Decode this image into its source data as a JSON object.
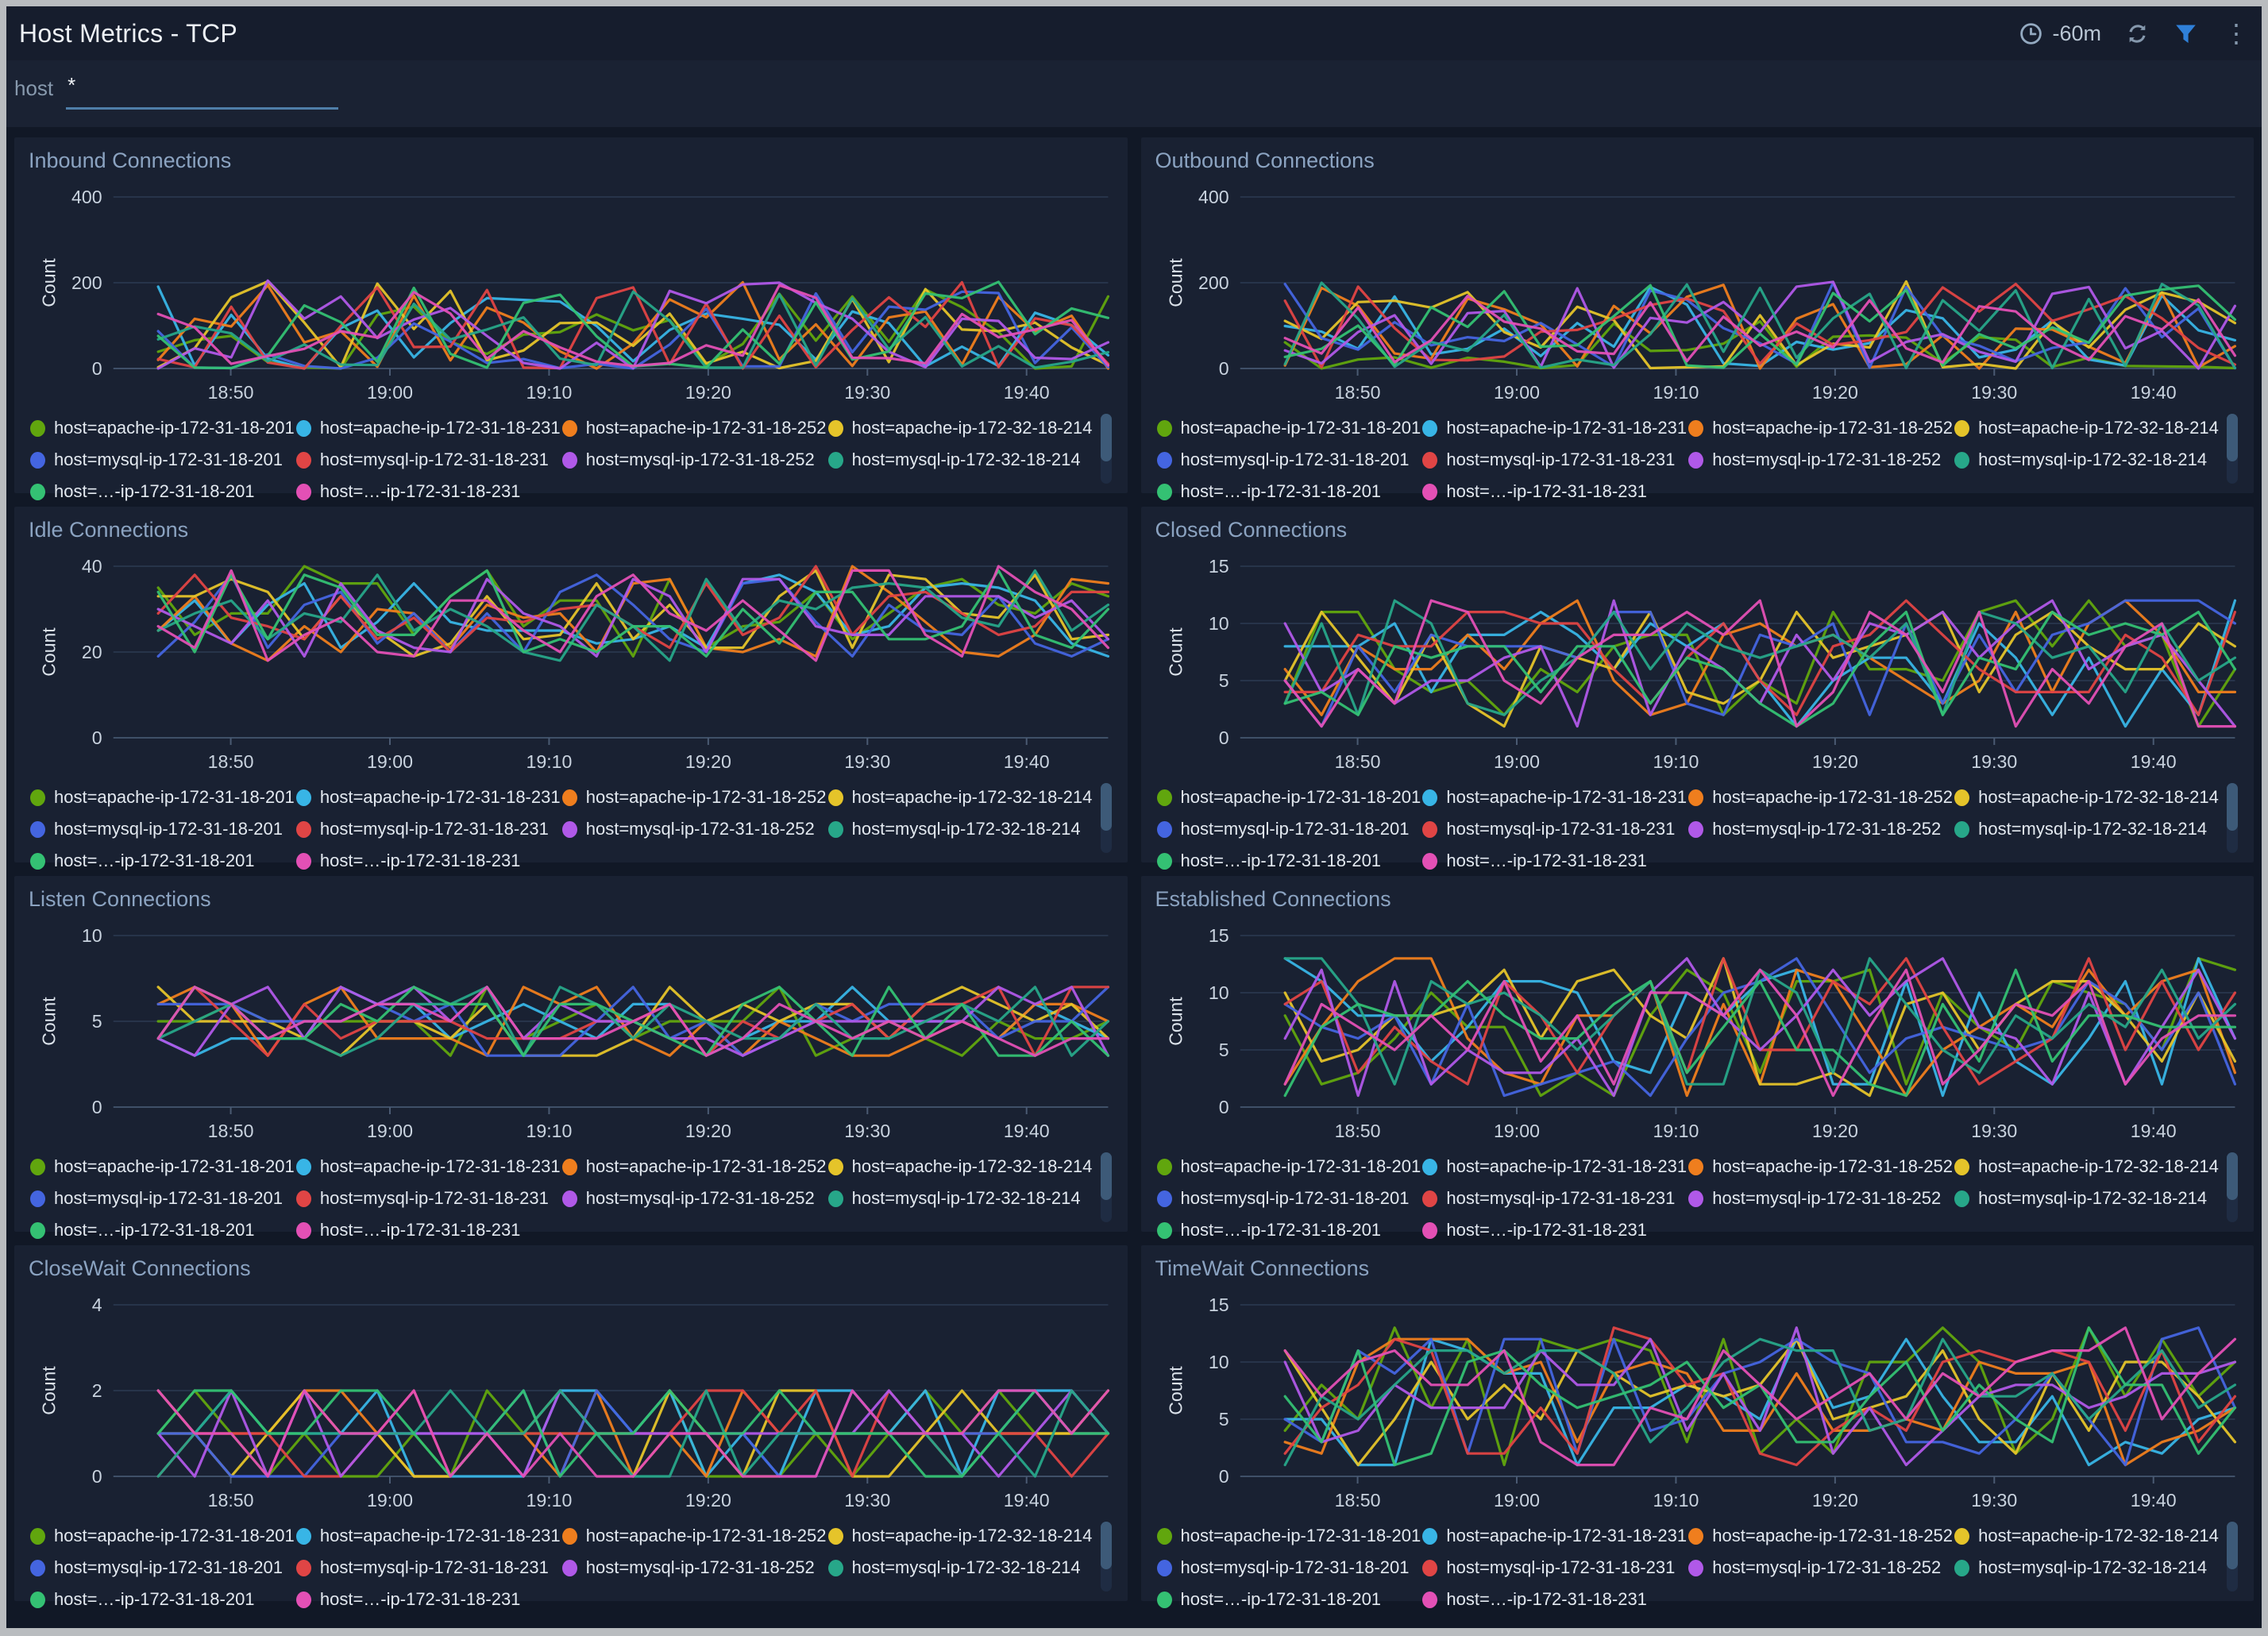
{
  "window": {
    "frame_color": "#b9bcbf",
    "page_bg": "#111826",
    "panel_bg": "#192132"
  },
  "header": {
    "title": "Host Metrics - TCP",
    "time_range": "-60m",
    "icons": [
      "clock-icon",
      "refresh-icon",
      "filter-icon",
      "kebab-menu-icon"
    ],
    "filter_icon_color": "#2f80d9",
    "icon_color": "#93a9c0"
  },
  "filter": {
    "label": "host",
    "value": "*"
  },
  "x_ticks": [
    "18:50",
    "19:00",
    "19:10",
    "19:20",
    "19:30",
    "19:40"
  ],
  "series": [
    {
      "name": "host=apache-ip-172-31-18-201",
      "color": "#61a60e"
    },
    {
      "name": "host=apache-ip-172-31-18-231",
      "color": "#38b5e6"
    },
    {
      "name": "host=apache-ip-172-31-18-252",
      "color": "#ef7e1e"
    },
    {
      "name": "host=apache-ip-172-32-18-214",
      "color": "#e5c42a"
    },
    {
      "name": "host=mysql-ip-172-31-18-201",
      "color": "#4465e0"
    },
    {
      "name": "host=mysql-ip-172-31-18-231",
      "color": "#e04545"
    },
    {
      "name": "host=mysql-ip-172-31-18-252",
      "color": "#b059e8"
    },
    {
      "name": "host=mysql-ip-172-32-18-214",
      "color": "#27a789"
    },
    {
      "name": "host=…-ip-172-31-18-201",
      "color": "#34c173",
      "clipped": true
    },
    {
      "name": "host=…-ip-172-31-18-231",
      "color": "#e350b5",
      "clipped": true
    }
  ],
  "chart_data": [
    {
      "type": "line",
      "title": "Inbound Connections",
      "ylabel": "Count",
      "ylim": [
        0,
        400
      ],
      "yticks": [
        0,
        200,
        400
      ],
      "band": {
        "min": 0,
        "max": 205,
        "bias": 1.8
      },
      "seed": 11
    },
    {
      "type": "line",
      "title": "Outbound Connections",
      "ylabel": "Count",
      "ylim": [
        0,
        400
      ],
      "yticks": [
        0,
        200,
        400
      ],
      "band": {
        "min": 0,
        "max": 205,
        "bias": 1.8
      },
      "seed": 22
    },
    {
      "type": "line",
      "title": "Idle Connections",
      "ylabel": "Count",
      "ylim": [
        0,
        40
      ],
      "yticks": [
        0,
        20,
        40
      ],
      "band": {
        "min": 18,
        "max": 40,
        "bias": 1
      },
      "seed": 33
    },
    {
      "type": "line",
      "title": "Closed Connections",
      "ylabel": "Count",
      "ylim": [
        0,
        15
      ],
      "yticks": [
        0,
        5,
        10,
        15
      ],
      "band": {
        "min": 1,
        "max": 12,
        "bias": 1
      },
      "seed": 44
    },
    {
      "type": "line",
      "title": "Listen Connections",
      "ylabel": "Count",
      "ylim": [
        0,
        10
      ],
      "yticks": [
        0,
        5,
        10
      ],
      "band": {
        "min": 3,
        "max": 7,
        "bias": 1
      },
      "seed": 55
    },
    {
      "type": "line",
      "title": "Established Connections",
      "ylabel": "Count",
      "ylim": [
        0,
        15
      ],
      "yticks": [
        0,
        5,
        10,
        15
      ],
      "band": {
        "min": 1,
        "max": 13,
        "bias": 1
      },
      "seed": 66
    },
    {
      "type": "line",
      "title": "CloseWait Connections",
      "ylabel": "Count",
      "ylim": [
        0,
        4
      ],
      "yticks": [
        0,
        2,
        4
      ],
      "band": {
        "min": 0,
        "max": 2,
        "bias": 1
      },
      "seed": 77
    },
    {
      "type": "line",
      "title": "TimeWait Connections",
      "ylabel": "Count",
      "ylim": [
        0,
        15
      ],
      "yticks": [
        0,
        5,
        10,
        15
      ],
      "band": {
        "min": 1,
        "max": 13,
        "bias": 1
      },
      "seed": 88
    }
  ]
}
